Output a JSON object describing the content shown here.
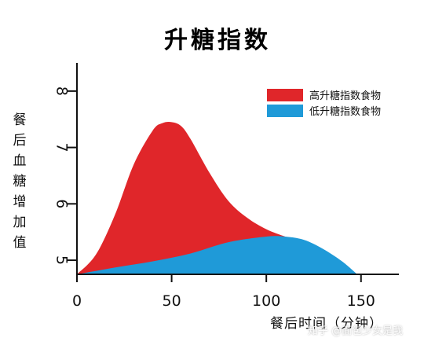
{
  "chart_data": {
    "type": "area",
    "title": "升糖指数",
    "xlabel": "餐后时间（分钟）",
    "ylabel": "餐后血糖增加值",
    "xlim": [
      0,
      170
    ],
    "ylim": [
      4.75,
      8.5
    ],
    "xticks": [
      0,
      50,
      100,
      150
    ],
    "yticks": [
      5,
      6,
      7,
      8
    ],
    "legend_position": "top-right",
    "series": [
      {
        "name": "高升糖指数食物",
        "color": "#e0262a",
        "x": [
          0,
          10,
          20,
          30,
          40,
          45,
          50,
          55,
          60,
          70,
          80,
          90,
          100,
          110,
          115
        ],
        "y": [
          4.75,
          5.1,
          5.8,
          6.7,
          7.3,
          7.43,
          7.45,
          7.38,
          7.15,
          6.55,
          6.05,
          5.75,
          5.55,
          5.42,
          5.38
        ]
      },
      {
        "name": "低升糖指数食物",
        "color": "#1f9ad8",
        "x": [
          0,
          20,
          40,
          60,
          80,
          100,
          110,
          120,
          130,
          140,
          148
        ],
        "y": [
          4.75,
          4.87,
          4.98,
          5.12,
          5.32,
          5.42,
          5.42,
          5.36,
          5.2,
          4.98,
          4.75
        ]
      }
    ]
  },
  "watermark": "知乎 @面包少女是我"
}
